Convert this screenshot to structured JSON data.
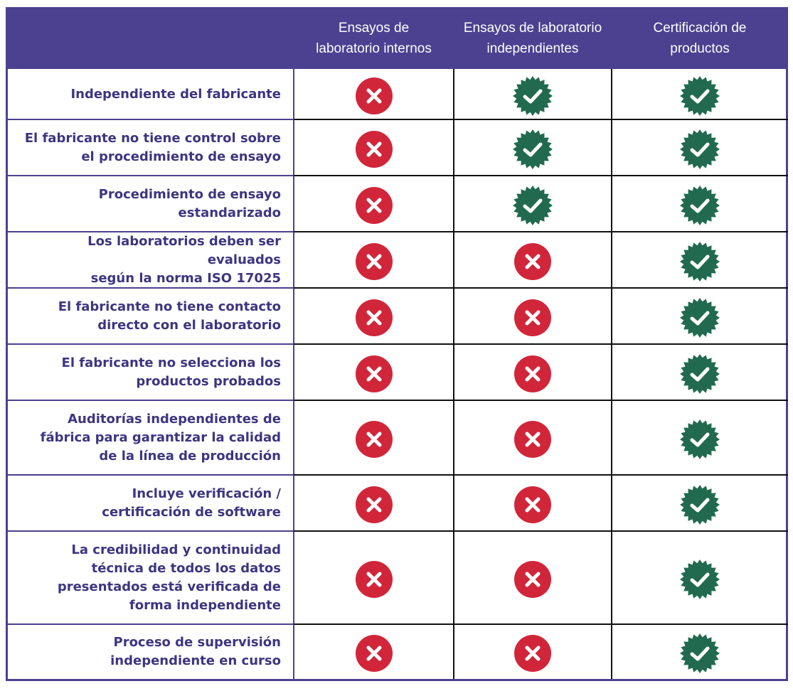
{
  "header": {
    "columns": [
      [
        "Ensayos de",
        "laboratorio internos"
      ],
      [
        "Ensayos de laboratorio",
        "independientes"
      ],
      [
        "Certificación de",
        "productos"
      ]
    ]
  },
  "rows": [
    {
      "label": [
        "Independiente del fabricante"
      ],
      "values": [
        false,
        true,
        true
      ]
    },
    {
      "label": [
        "El fabricante no tiene control sobre",
        "el procedimiento de ensayo"
      ],
      "values": [
        false,
        true,
        true
      ]
    },
    {
      "label": [
        "Procedimiento de ensayo",
        "estandarizado"
      ],
      "values": [
        false,
        true,
        true
      ]
    },
    {
      "label": [
        "Los laboratorios deben ser evaluados",
        "según la norma ISO 17025"
      ],
      "values": [
        false,
        false,
        true
      ]
    },
    {
      "label": [
        "El fabricante no tiene contacto",
        "directo con el laboratorio"
      ],
      "values": [
        false,
        false,
        true
      ]
    },
    {
      "label": [
        "El fabricante no selecciona los",
        "productos probados"
      ],
      "values": [
        false,
        false,
        true
      ]
    },
    {
      "label": [
        "Auditorías independientes de",
        "fábrica para garantizar la calidad",
        "de la línea de producción"
      ],
      "values": [
        false,
        false,
        true
      ]
    },
    {
      "label": [
        "Incluye verificación /",
        "certificación de software"
      ],
      "values": [
        false,
        false,
        true
      ]
    },
    {
      "label": [
        "La credibilidad y continuidad",
        "técnica de todos los datos",
        "presentados está verificada de",
        "forma independiente"
      ],
      "values": [
        false,
        false,
        true
      ]
    },
    {
      "label": [
        "Proceso de supervisión",
        "independiente en curso"
      ],
      "values": [
        false,
        false,
        true
      ]
    }
  ]
}
